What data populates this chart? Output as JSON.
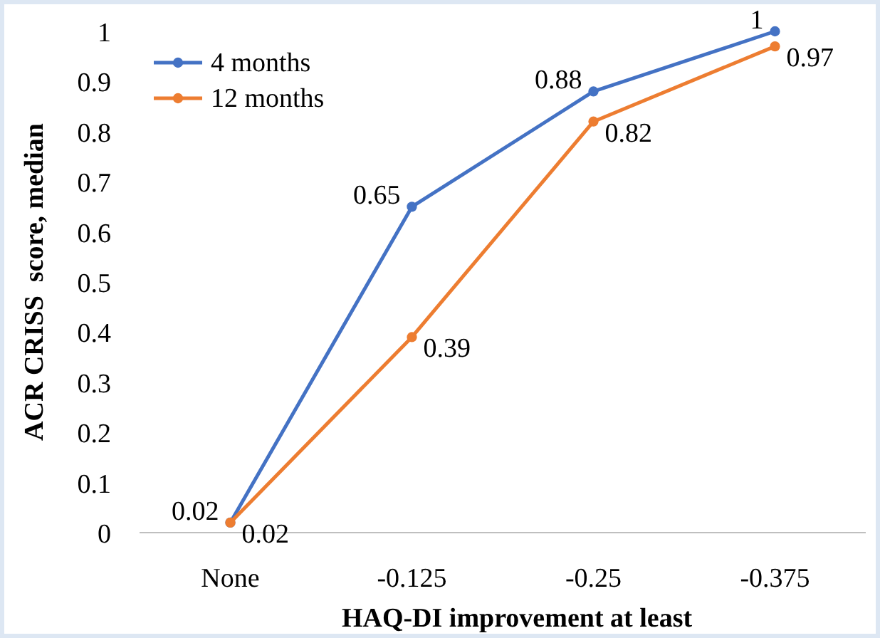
{
  "chart_data": {
    "type": "line",
    "xlabel": "HAQ-DI improvement at least",
    "ylabel": "ACR CRISS  score, median",
    "categories": [
      "None",
      "-0.125",
      "-0.25",
      "-0.375"
    ],
    "series": [
      {
        "name": "4 months",
        "color": "#4472c4",
        "values": [
          0.02,
          0.65,
          0.88,
          1
        ]
      },
      {
        "name": "12 months",
        "color": "#ed7d31",
        "values": [
          0.02,
          0.39,
          0.82,
          0.97
        ]
      }
    ],
    "ylim": [
      0,
      1
    ],
    "yticks": [
      0,
      0.1,
      0.2,
      0.3,
      0.4,
      0.5,
      0.6,
      0.7,
      0.8,
      0.9,
      1
    ],
    "grid": false,
    "legend": "top left",
    "marker": "circle",
    "data_labels": true
  }
}
